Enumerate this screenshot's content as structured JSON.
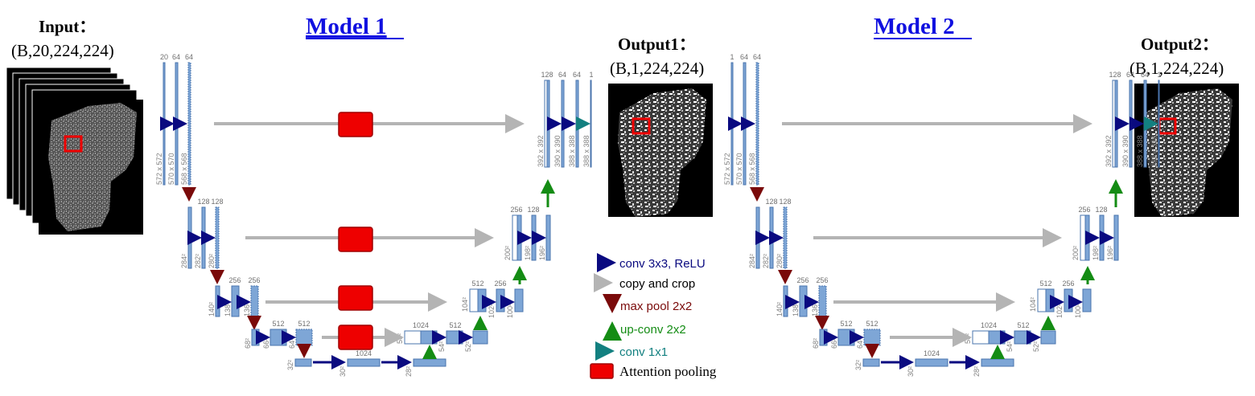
{
  "input": {
    "label": "Input：",
    "shape": "(B,20,224,224)"
  },
  "output1": {
    "label": "Output1：",
    "shape": "(B,1,224,224)"
  },
  "output2": {
    "label": "Output2：",
    "shape": "(B,1,224,224)"
  },
  "model1": {
    "title": "Model 1",
    "channels": {
      "l0": [
        "20",
        "64",
        "64"
      ],
      "l1": [
        "128",
        "128"
      ],
      "l2": [
        "256",
        "256"
      ],
      "l3": [
        "512",
        "512"
      ],
      "bot": "1024",
      "u3": [
        "1024",
        "512"
      ],
      "u2": [
        "512",
        "256"
      ],
      "u1": [
        "256",
        "128"
      ],
      "u0": [
        "128",
        "64",
        "64",
        "1"
      ]
    },
    "sizes": {
      "l0": [
        "572 x 572",
        "570 x 570",
        "568 x 568"
      ],
      "l1": [
        "284²",
        "282²",
        "280²"
      ],
      "l2": [
        "140²",
        "138²",
        "136²"
      ],
      "l3": [
        "68²",
        "66²",
        "64²"
      ],
      "bot": [
        "32²",
        "30²",
        "28²"
      ],
      "u3": [
        "56²",
        "54²",
        "52²"
      ],
      "u2": [
        "104²",
        "102²",
        "100²"
      ],
      "u1": [
        "200²",
        "198²",
        "196²"
      ],
      "u0": [
        "392 x 392",
        "390 x 390",
        "388 x 388",
        "388 x 388"
      ]
    }
  },
  "model2": {
    "title": "Model 2",
    "channels": {
      "l0": [
        "1",
        "64",
        "64"
      ],
      "l1": [
        "128",
        "128"
      ],
      "l2": [
        "256",
        "256"
      ],
      "l3": [
        "512",
        "512"
      ],
      "bot": "1024",
      "u3": [
        "1024",
        "512"
      ],
      "u2": [
        "512",
        "256"
      ],
      "u1": [
        "256",
        "128"
      ],
      "u0": [
        "128",
        "64",
        "64",
        "1"
      ]
    },
    "sizes": {
      "l0": [
        "572 x 572",
        "570 x 570",
        "568 x 568"
      ],
      "l1": [
        "284²",
        "282²",
        "280²"
      ],
      "l2": [
        "140²",
        "138²",
        "136²"
      ],
      "l3": [
        "68²",
        "66²",
        "64²"
      ],
      "bot": [
        "32²",
        "30²",
        "28²"
      ],
      "u3": [
        "56²",
        "54²",
        "52²"
      ],
      "u2": [
        "104²",
        "102²",
        "100²"
      ],
      "u1": [
        "200²",
        "198²",
        "196²"
      ],
      "u0": [
        "392 x 392",
        "390 x 390",
        "388 x 388",
        "388 x 388"
      ]
    }
  },
  "legend": {
    "conv": "conv 3x3, ReLU",
    "copy": "copy and crop",
    "pool": "max pool 2x2",
    "upconv": "up-conv 2x2",
    "conv1x1": "conv 1x1",
    "attention": "Attention pooling"
  },
  "colors": {
    "block": "#7ea6d6",
    "block_edge": "#4a74ad",
    "title": "#1010e0",
    "conv": "#0a0a80",
    "copy": "#b4b4b4",
    "pool": "#7a0a0a",
    "upconv": "#148c14",
    "conv1x1": "#138080",
    "attention": "#ee0000"
  }
}
